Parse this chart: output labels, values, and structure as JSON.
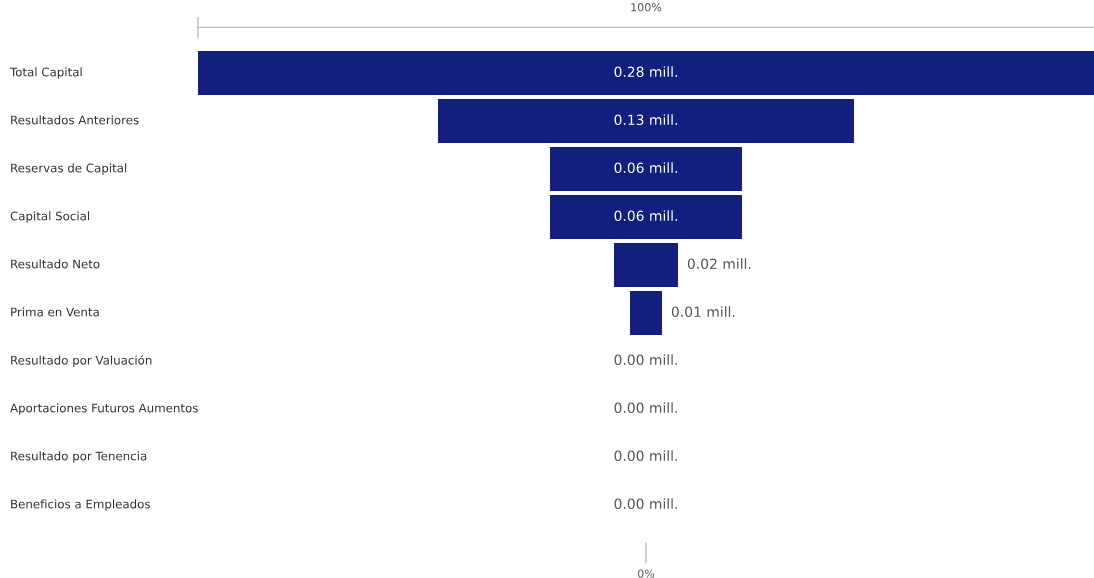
{
  "chart_data": {
    "type": "other",
    "categories": [
      "Total Capital",
      "Resultados Anteriores",
      "Reservas de Capital",
      "Capital Social",
      "Resultado Neto",
      "Prima en Venta",
      "Resultado por Valuación",
      "Aportaciones Futuros Aumentos",
      "Resultado por Tenencia",
      "Beneficios a Empleados"
    ],
    "values": [
      0.28,
      0.13,
      0.06,
      0.06,
      0.02,
      0.01,
      0.0,
      0.0,
      0.0,
      0.0
    ],
    "value_labels": [
      "0.28 mill.",
      "0.13 mill.",
      "0.06 mill.",
      "0.06 mill.",
      "0.02 mill.",
      "0.01 mill.",
      "0.00 mill.",
      "0.00 mill.",
      "0.00 mill.",
      "0.00 mill."
    ],
    "color": "#121f7c",
    "annotations": [
      "100%",
      "0%"
    ]
  }
}
